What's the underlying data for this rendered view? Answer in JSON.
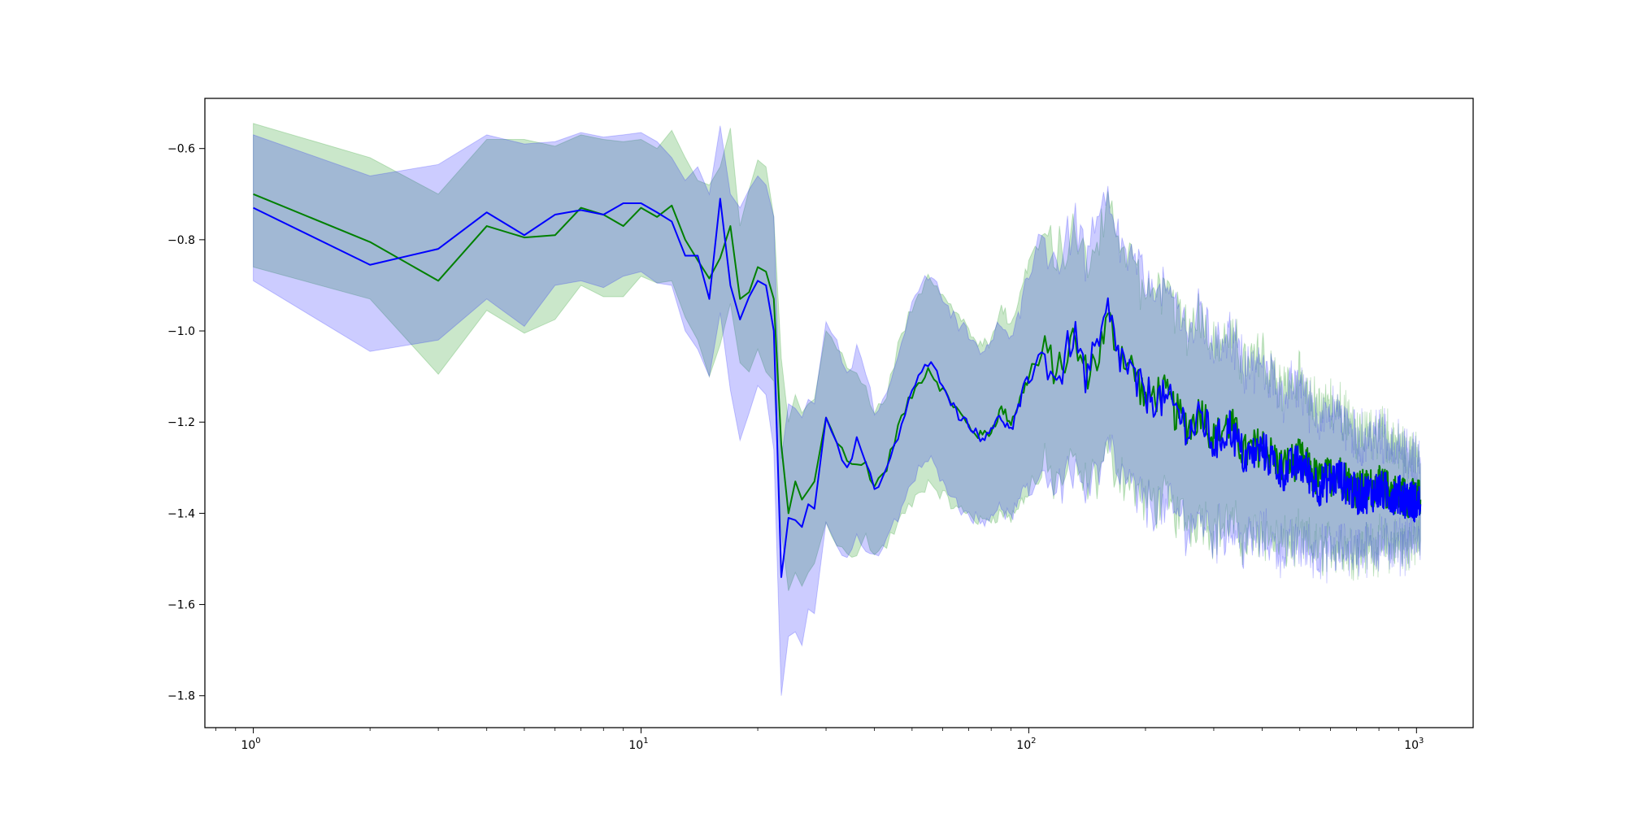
{
  "chart_data": {
    "type": "line",
    "title": "",
    "xlabel": "",
    "ylabel": "",
    "xscale": "log",
    "xlim": [
      0.75,
      1400
    ],
    "ylim": [
      -1.87,
      -0.49
    ],
    "grid": false,
    "legend": "none",
    "x_ticks": [
      {
        "value": 1,
        "base": "10",
        "exp": "0"
      },
      {
        "value": 10,
        "base": "10",
        "exp": "1"
      },
      {
        "value": 100,
        "base": "10",
        "exp": "2"
      },
      {
        "value": 1000,
        "base": "10",
        "exp": "3"
      }
    ],
    "y_ticks": [
      {
        "value": -0.6,
        "label": "−0.6"
      },
      {
        "value": -0.8,
        "label": "−0.8"
      },
      {
        "value": -1.0,
        "label": "−1.0"
      },
      {
        "value": -1.2,
        "label": "−1.2"
      },
      {
        "value": -1.4,
        "label": "−1.4"
      },
      {
        "value": -1.6,
        "label": "−1.6"
      },
      {
        "value": -1.8,
        "label": "−1.8"
      }
    ],
    "series": [
      {
        "color": "#008000",
        "band_color": "#2ca02c",
        "band_opacity": 0.25,
        "x": [
          1,
          2,
          3,
          4,
          5,
          6,
          7,
          8,
          9,
          10,
          11,
          12,
          13,
          14,
          15,
          16,
          17,
          18,
          19,
          20,
          21,
          22,
          23,
          24,
          25,
          26,
          27,
          28,
          30,
          32,
          34,
          36,
          38,
          40,
          43,
          46,
          50,
          55,
          60,
          65,
          70,
          75,
          80,
          85,
          90,
          95,
          100,
          110,
          120,
          130,
          140,
          150,
          160,
          170,
          180,
          190,
          200,
          220,
          240,
          260,
          280,
          300,
          330,
          360,
          400,
          450,
          500,
          560,
          630,
          700,
          800,
          900,
          1024
        ],
        "mean": [
          -0.7,
          -0.805,
          -0.89,
          -0.77,
          -0.795,
          -0.79,
          -0.73,
          -0.745,
          -0.77,
          -0.73,
          -0.75,
          -0.725,
          -0.8,
          -0.845,
          -0.885,
          -0.84,
          -0.77,
          -0.93,
          -0.915,
          -0.86,
          -0.87,
          -0.93,
          -1.25,
          -1.4,
          -1.33,
          -1.37,
          -1.35,
          -1.33,
          -1.19,
          -1.24,
          -1.28,
          -1.3,
          -1.29,
          -1.34,
          -1.3,
          -1.21,
          -1.14,
          -1.08,
          -1.13,
          -1.17,
          -1.21,
          -1.23,
          -1.22,
          -1.17,
          -1.2,
          -1.15,
          -1.1,
          -1.05,
          -1.09,
          -1.02,
          -1.09,
          -1.06,
          -0.98,
          -1.03,
          -1.07,
          -1.1,
          -1.15,
          -1.13,
          -1.18,
          -1.21,
          -1.17,
          -1.24,
          -1.2,
          -1.27,
          -1.25,
          -1.3,
          -1.28,
          -1.33,
          -1.31,
          -1.35,
          -1.34,
          -1.36,
          -1.37
        ],
        "lower": [
          -0.86,
          -0.93,
          -1.095,
          -0.955,
          -1.005,
          -0.975,
          -0.9,
          -0.925,
          -0.925,
          -0.88,
          -0.895,
          -0.89,
          -0.97,
          -1.02,
          -1.1,
          -1.03,
          -0.94,
          -1.07,
          -1.09,
          -1.04,
          -1.09,
          -1.11,
          -1.44,
          -1.57,
          -1.53,
          -1.56,
          -1.53,
          -1.51,
          -1.42,
          -1.46,
          -1.48,
          -1.5,
          -1.45,
          -1.49,
          -1.47,
          -1.42,
          -1.38,
          -1.33,
          -1.36,
          -1.39,
          -1.4,
          -1.42,
          -1.41,
          -1.4,
          -1.41,
          -1.38,
          -1.35,
          -1.31,
          -1.33,
          -1.3,
          -1.34,
          -1.32,
          -1.27,
          -1.3,
          -1.33,
          -1.35,
          -1.38,
          -1.37,
          -1.4,
          -1.42,
          -1.4,
          -1.44,
          -1.42,
          -1.46,
          -1.44,
          -1.47,
          -1.46,
          -1.48,
          -1.47,
          -1.48,
          -1.47,
          -1.47,
          -1.46
        ],
        "upper": [
          -0.545,
          -0.62,
          -0.7,
          -0.58,
          -0.58,
          -0.595,
          -0.57,
          -0.58,
          -0.585,
          -0.58,
          -0.6,
          -0.56,
          -0.62,
          -0.67,
          -0.68,
          -0.64,
          -0.555,
          -0.77,
          -0.69,
          -0.625,
          -0.64,
          -0.75,
          -1.06,
          -1.2,
          -1.14,
          -1.18,
          -1.16,
          -1.15,
          -1.0,
          -1.04,
          -1.08,
          -1.1,
          -1.12,
          -1.18,
          -1.14,
          -1.03,
          -0.95,
          -0.87,
          -0.92,
          -0.96,
          -1.0,
          -1.03,
          -1.02,
          -0.95,
          -0.98,
          -0.92,
          -0.85,
          -0.8,
          -0.84,
          -0.77,
          -0.84,
          -0.8,
          -0.73,
          -0.79,
          -0.83,
          -0.86,
          -0.92,
          -0.9,
          -0.96,
          -1.0,
          -0.96,
          -1.04,
          -1.0,
          -1.08,
          -1.06,
          -1.13,
          -1.11,
          -1.18,
          -1.16,
          -1.23,
          -1.22,
          -1.25,
          -1.29
        ]
      },
      {
        "color": "#0000ff",
        "band_color": "#0000ff",
        "band_opacity": 0.2,
        "x": [
          1,
          2,
          3,
          4,
          5,
          6,
          7,
          8,
          9,
          10,
          11,
          12,
          13,
          14,
          15,
          16,
          17,
          18,
          19,
          20,
          21,
          22,
          23,
          24,
          25,
          26,
          27,
          28,
          30,
          32,
          34,
          36,
          38,
          40,
          43,
          46,
          50,
          55,
          60,
          65,
          70,
          75,
          80,
          85,
          90,
          95,
          100,
          110,
          120,
          130,
          140,
          150,
          160,
          170,
          180,
          190,
          200,
          220,
          240,
          260,
          280,
          300,
          330,
          360,
          400,
          450,
          500,
          560,
          630,
          700,
          800,
          900,
          1024
        ],
        "mean": [
          -0.73,
          -0.855,
          -0.82,
          -0.74,
          -0.79,
          -0.745,
          -0.735,
          -0.745,
          -0.72,
          -0.72,
          -0.74,
          -0.76,
          -0.835,
          -0.835,
          -0.93,
          -0.71,
          -0.9,
          -0.975,
          -0.925,
          -0.89,
          -0.9,
          -1.0,
          -1.54,
          -1.41,
          -1.415,
          -1.43,
          -1.38,
          -1.39,
          -1.19,
          -1.25,
          -1.3,
          -1.24,
          -1.29,
          -1.35,
          -1.31,
          -1.23,
          -1.13,
          -1.07,
          -1.11,
          -1.18,
          -1.2,
          -1.24,
          -1.21,
          -1.19,
          -1.22,
          -1.16,
          -1.08,
          -1.06,
          -1.11,
          -1.0,
          -1.1,
          -1.05,
          -0.96,
          -1.05,
          -1.08,
          -1.12,
          -1.14,
          -1.15,
          -1.17,
          -1.22,
          -1.19,
          -1.25,
          -1.21,
          -1.28,
          -1.26,
          -1.31,
          -1.29,
          -1.34,
          -1.32,
          -1.36,
          -1.35,
          -1.36,
          -1.38
        ],
        "lower": [
          -0.89,
          -1.045,
          -1.02,
          -0.93,
          -0.99,
          -0.9,
          -0.89,
          -0.905,
          -0.88,
          -0.87,
          -0.895,
          -0.9,
          -1.0,
          -1.04,
          -1.1,
          -0.96,
          -1.13,
          -1.24,
          -1.18,
          -1.12,
          -1.14,
          -1.26,
          -1.8,
          -1.67,
          -1.66,
          -1.69,
          -1.61,
          -1.62,
          -1.42,
          -1.47,
          -1.5,
          -1.45,
          -1.48,
          -1.5,
          -1.46,
          -1.41,
          -1.33,
          -1.28,
          -1.32,
          -1.38,
          -1.4,
          -1.42,
          -1.4,
          -1.39,
          -1.41,
          -1.37,
          -1.33,
          -1.31,
          -1.34,
          -1.29,
          -1.35,
          -1.32,
          -1.26,
          -1.31,
          -1.34,
          -1.36,
          -1.38,
          -1.39,
          -1.4,
          -1.43,
          -1.41,
          -1.45,
          -1.43,
          -1.47,
          -1.45,
          -1.48,
          -1.47,
          -1.49,
          -1.48,
          -1.48,
          -1.47,
          -1.47,
          -1.46
        ],
        "upper": [
          -0.57,
          -0.66,
          -0.635,
          -0.57,
          -0.59,
          -0.585,
          -0.565,
          -0.575,
          -0.57,
          -0.565,
          -0.585,
          -0.62,
          -0.67,
          -0.64,
          -0.7,
          -0.55,
          -0.7,
          -0.73,
          -0.69,
          -0.66,
          -0.68,
          -0.75,
          -1.28,
          -1.16,
          -1.17,
          -1.19,
          -1.15,
          -1.16,
          -0.98,
          -1.03,
          -1.09,
          -1.04,
          -1.1,
          -1.18,
          -1.15,
          -1.05,
          -0.94,
          -0.88,
          -0.92,
          -0.98,
          -1.0,
          -1.05,
          -1.02,
          -0.98,
          -1.02,
          -0.96,
          -0.85,
          -0.81,
          -0.86,
          -0.76,
          -0.85,
          -0.79,
          -0.72,
          -0.8,
          -0.83,
          -0.87,
          -0.89,
          -0.91,
          -0.94,
          -1.0,
          -0.97,
          -1.04,
          -1.0,
          -1.09,
          -1.07,
          -1.14,
          -1.12,
          -1.19,
          -1.17,
          -1.24,
          -1.23,
          -1.25,
          -1.29
        ]
      }
    ]
  }
}
